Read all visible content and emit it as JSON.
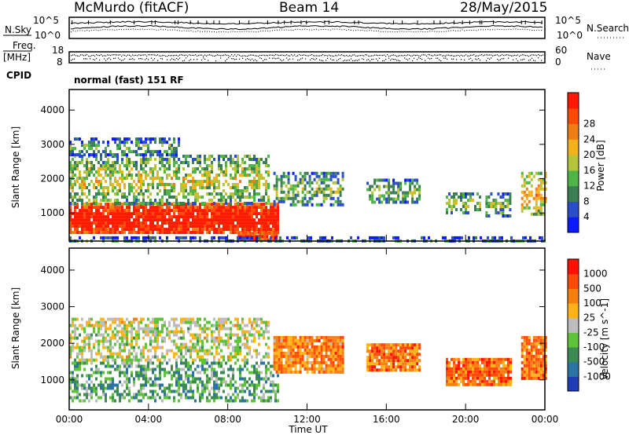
{
  "header": {
    "station": "McMurdo (fitACF)",
    "beam": "Beam 14",
    "date": "28/May/2015"
  },
  "top_panels": {
    "nsky_label": "N.Sky",
    "nsky_ticks": [
      "10^5",
      "10^0"
    ],
    "nsearch_label": "N.Search",
    "nsearch_ticks": [
      "10^5",
      "10^0"
    ],
    "freq_label": "Freq.",
    "freq_unit": "[MHz]",
    "freq_ticks": [
      "18",
      "8"
    ],
    "nave_label": "Nave",
    "nave_ticks": [
      "60",
      "0"
    ],
    "cpid_label": "CPID",
    "cpid_text": "normal (fast) 151 RF"
  },
  "chart_data": [
    {
      "type": "heatmap",
      "name": "power",
      "ylabel": "Slant Range [km]",
      "ylim": [
        180,
        4600
      ],
      "yticks": [
        1000,
        2000,
        3000,
        4000
      ],
      "xlim": [
        0,
        24
      ],
      "xticks": [
        "00:00",
        "04:00",
        "08:00",
        "12:00",
        "16:00",
        "20:00",
        "00:00"
      ],
      "colorbar": {
        "label": "Power [dB]",
        "ticks": [
          "4",
          "8",
          "12",
          "16",
          "20",
          "24",
          "28"
        ],
        "colors": [
          "#0a1cff",
          "#2a4ec8",
          "#3d7f55",
          "#4fb548",
          "#b5c43a",
          "#f2b21d",
          "#f07f13",
          "#ff4a08",
          "#ff1a00"
        ]
      },
      "echo_regions": [
        {
          "t": [
            0.0,
            10.5
          ],
          "range": [
            400,
            1300
          ],
          "level": 0.92
        },
        {
          "t": [
            0.0,
            10.0
          ],
          "range": [
            1300,
            2700
          ],
          "level": 0.4
        },
        {
          "t": [
            0.0,
            5.5
          ],
          "range": [
            2700,
            3200
          ],
          "level": 0.25
        },
        {
          "t": [
            8.5,
            10.5
          ],
          "range": [
            200,
            450
          ],
          "level": 0.85
        },
        {
          "t": [
            10.3,
            13.8
          ],
          "range": [
            1200,
            2200
          ],
          "level": 0.3
        },
        {
          "t": [
            15.0,
            17.7
          ],
          "range": [
            1300,
            2000
          ],
          "level": 0.3
        },
        {
          "t": [
            19.0,
            20.7
          ],
          "range": [
            1000,
            1600
          ],
          "level": 0.35
        },
        {
          "t": [
            21.0,
            22.3
          ],
          "range": [
            900,
            1600
          ],
          "level": 0.3
        },
        {
          "t": [
            22.8,
            24.0
          ],
          "range": [
            1000,
            2200
          ],
          "level": 0.55
        },
        {
          "t": [
            0.0,
            24.0
          ],
          "range": [
            180,
            320
          ],
          "level": 0.2
        }
      ]
    },
    {
      "type": "heatmap",
      "name": "velocity",
      "ylabel": "Slant Range [km]",
      "xlabel": "Time UT",
      "ylim": [
        180,
        4600
      ],
      "yticks": [
        1000,
        2000,
        3000,
        4000
      ],
      "xlim": [
        0,
        24
      ],
      "xticks": [
        "00:00",
        "04:00",
        "08:00",
        "12:00",
        "16:00",
        "20:00",
        "00:00"
      ],
      "colorbar": {
        "label": "Velocity [m s^-1]",
        "ticks": [
          "1000",
          "500",
          "100",
          "25",
          "-25",
          "-100",
          "-500",
          "-1000"
        ],
        "colors": [
          "#1f3cb4",
          "#2c74a4",
          "#3d8a52",
          "#5ec33a",
          "#bdbdbd",
          "#ffb316",
          "#f77f12",
          "#ff4a08",
          "#ff1200"
        ]
      },
      "echo_regions": [
        {
          "t": [
            0.0,
            10.5
          ],
          "range": [
            400,
            1500
          ],
          "level": 0.32
        },
        {
          "t": [
            0.0,
            10.0
          ],
          "range": [
            1500,
            2700
          ],
          "level": 0.5
        },
        {
          "t": [
            10.3,
            13.8
          ],
          "range": [
            1200,
            2200
          ],
          "level": 0.72
        },
        {
          "t": [
            15.0,
            17.7
          ],
          "range": [
            1300,
            2000
          ],
          "level": 0.75
        },
        {
          "t": [
            19.0,
            22.3
          ],
          "range": [
            900,
            1600
          ],
          "level": 0.78
        },
        {
          "t": [
            22.8,
            24.0
          ],
          "range": [
            1000,
            2200
          ],
          "level": 0.74
        }
      ]
    }
  ]
}
